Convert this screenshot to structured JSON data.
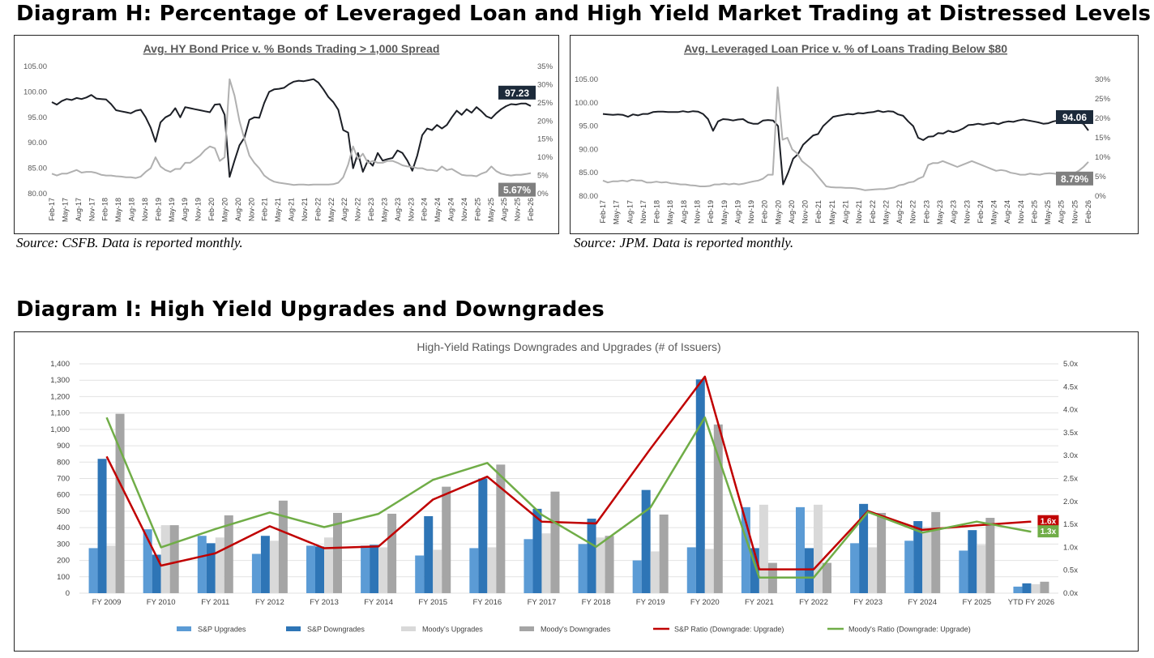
{
  "headings": {
    "diagram_h": "Diagram H: Percentage of Leveraged Loan and High Yield Market Trading at Distressed Levels",
    "diagram_i": "Diagram I: High Yield Upgrades and Downgrades"
  },
  "sources": {
    "hy": "Source: CSFB. Data is reported monthly.",
    "loan": "Source: JPM. Data is reported monthly."
  },
  "colors": {
    "dark": "#1c1f26",
    "light": "#b0b0b0",
    "sp_up": "#5b9bd5",
    "sp_down": "#2e75b6",
    "moody_up": "#d9d9d9",
    "moody_down": "#a5a5a5",
    "sp_ratio": "#c00000",
    "moody_ratio": "#70ad47"
  },
  "chart_data": [
    {
      "type": "line",
      "title": "Avg. HY Bond Price v. % Bonds Trading > 1,000 Spread",
      "x_labels": [
        "Feb-17",
        "May-17",
        "Aug-17",
        "Nov-17",
        "Feb-18",
        "May-18",
        "Aug-18",
        "Nov-18",
        "Feb-19",
        "May-19",
        "Aug-19",
        "Nov-19",
        "Feb-20",
        "May-20",
        "Aug-20",
        "Nov-20",
        "Feb-21",
        "May-21",
        "Aug-21",
        "Nov-21",
        "Feb-22",
        "May-22",
        "Aug-22",
        "Nov-22",
        "Feb-23",
        "May-23",
        "Aug-23",
        "Nov-23",
        "Feb-24",
        "May-24",
        "Aug-24",
        "Nov-24",
        "Feb-25",
        "May-25",
        "Aug-25",
        "Nov-25",
        "Feb-26"
      ],
      "y_left_ticks": [
        "80.00",
        "85.00",
        "90.00",
        "95.00",
        "100.00",
        "105.00"
      ],
      "y_right_ticks": [
        "0%",
        "5%",
        "10%",
        "15%",
        "20%",
        "25%",
        "30%",
        "35%"
      ],
      "ylim_left": [
        80,
        105
      ],
      "ylim_right": [
        0,
        35
      ],
      "series": [
        {
          "name": "Avg. HY Bond Price",
          "axis": "left",
          "color_key": "dark",
          "values": [
            98.0,
            97.5,
            98.2,
            98.6,
            98.4,
            98.8,
            98.6,
            98.9,
            99.4,
            98.7,
            98.6,
            98.5,
            97.6,
            96.4,
            96.2,
            96.0,
            95.8,
            96.3,
            96.5,
            95.0,
            93.0,
            90.2,
            94.0,
            95.0,
            95.5,
            96.8,
            95.0,
            97.0,
            96.8,
            96.6,
            96.4,
            96.2,
            96.0,
            97.5,
            97.6,
            95.5,
            83.3,
            86.5,
            89.5,
            91.0,
            94.5,
            95.0,
            94.9,
            97.8,
            100.0,
            100.5,
            100.6,
            100.8,
            101.5,
            102.0,
            102.2,
            102.1,
            102.3,
            102.5,
            101.8,
            100.5,
            99.0,
            98.0,
            96.5,
            92.5,
            92.0,
            85.0,
            88.0,
            84.3,
            86.5,
            85.5,
            88.0,
            86.5,
            86.8,
            87.0,
            88.5,
            88.0,
            86.5,
            84.5,
            87.5,
            91.5,
            92.8,
            92.5,
            93.5,
            92.8,
            93.5,
            95.0,
            96.3,
            95.5,
            96.6,
            95.9,
            97.0,
            96.2,
            95.2,
            94.8,
            95.8,
            96.6,
            97.2,
            97.6,
            97.5,
            97.7,
            97.7,
            97.23
          ]
        },
        {
          "name": "% Bonds Trading > 1,000 Spread",
          "axis": "right",
          "color_key": "light",
          "values": [
            5.5,
            5.0,
            5.5,
            5.5,
            6.0,
            6.5,
            5.8,
            6.0,
            6.0,
            5.7,
            5.2,
            5.0,
            5.0,
            4.8,
            4.7,
            4.5,
            4.5,
            4.3,
            4.7,
            6.0,
            7.0,
            10.0,
            7.5,
            6.5,
            6.0,
            6.8,
            6.8,
            8.5,
            8.5,
            9.5,
            10.5,
            12.0,
            13.0,
            12.5,
            9.0,
            10.0,
            31.5,
            27.0,
            20.0,
            15.0,
            10.5,
            8.5,
            7.0,
            5.0,
            4.0,
            3.3,
            3.0,
            2.8,
            2.6,
            2.4,
            2.5,
            2.5,
            2.4,
            2.5,
            2.5,
            2.5,
            2.5,
            2.6,
            3.0,
            4.5,
            8.0,
            13.0,
            9.5,
            11.0,
            8.5,
            9.0,
            8.5,
            8.5,
            9.0,
            9.0,
            8.5,
            7.8,
            7.5,
            7.4,
            7.0,
            7.0,
            6.5,
            6.5,
            6.2,
            7.5,
            6.5,
            6.8,
            6.0,
            5.2,
            5.0,
            5.0,
            4.8,
            5.5,
            6.0,
            7.5,
            6.2,
            5.5,
            5.2,
            5.0,
            5.2,
            5.2,
            5.4,
            5.67
          ]
        }
      ],
      "callouts": [
        {
          "text": "97.23",
          "series": "Avg. HY Bond Price",
          "style": "dark"
        },
        {
          "text": "5.67%",
          "series": "% Bonds Trading > 1,000 Spread",
          "style": "gray"
        }
      ]
    },
    {
      "type": "line",
      "title": "Avg. Leveraged Loan Price v. % of Loans Trading Below $80",
      "x_labels": [
        "Feb-17",
        "May-17",
        "Aug-17",
        "Nov-17",
        "Feb-18",
        "May-18",
        "Aug-18",
        "Nov-18",
        "Feb-19",
        "May-19",
        "Aug-19",
        "Nov-19",
        "Feb-20",
        "May-20",
        "Aug-20",
        "Nov-20",
        "Feb-21",
        "May-21",
        "Aug-21",
        "Nov-21",
        "Feb-22",
        "May-22",
        "Aug-22",
        "Nov-22",
        "Feb-23",
        "May-23",
        "Aug-23",
        "Nov-23",
        "Feb-24",
        "May-24",
        "Aug-24",
        "Nov-24",
        "Feb-25",
        "May-25",
        "Aug-25",
        "Nov-25",
        "Feb-26"
      ],
      "y_left_ticks": [
        "80.00",
        "85.00",
        "90.00",
        "95.00",
        "100.00",
        "105.00"
      ],
      "y_right_ticks": [
        "0%",
        "5%",
        "10%",
        "15%",
        "20%",
        "25%",
        "30%"
      ],
      "ylim_left": [
        80,
        105
      ],
      "ylim_right": [
        0,
        30
      ],
      "series": [
        {
          "name": "Avg. Leveraged Loan Price",
          "axis": "left",
          "color_key": "dark",
          "values": [
            97.6,
            97.5,
            97.4,
            97.5,
            97.4,
            97.0,
            97.5,
            97.3,
            97.6,
            97.6,
            98.0,
            98.1,
            98.1,
            98.0,
            98.0,
            98.0,
            98.2,
            98.0,
            98.2,
            98.1,
            97.6,
            96.5,
            94.0,
            96.0,
            96.5,
            96.4,
            96.2,
            96.4,
            96.5,
            95.8,
            95.5,
            95.5,
            96.2,
            96.3,
            96.2,
            95.0,
            82.5,
            85.0,
            88.0,
            89.0,
            91.0,
            92.0,
            93.0,
            93.3,
            95.0,
            96.0,
            97.0,
            97.2,
            97.4,
            97.6,
            97.5,
            97.8,
            97.7,
            97.9,
            98.0,
            98.3,
            98.0,
            98.2,
            98.1,
            97.5,
            97.2,
            96.0,
            95.0,
            92.5,
            92.0,
            92.7,
            92.8,
            93.5,
            93.4,
            94.0,
            93.7,
            94.0,
            94.5,
            95.2,
            95.3,
            95.5,
            95.3,
            95.5,
            95.7,
            95.4,
            95.8,
            96.0,
            95.9,
            96.2,
            96.4,
            96.2,
            96.0,
            95.8,
            95.5,
            95.6,
            96.0,
            96.2,
            96.3,
            96.1,
            96.0,
            95.8,
            95.5,
            94.06
          ]
        },
        {
          "name": "% of Loans Trading Below $80",
          "axis": "right",
          "color_key": "light",
          "values": [
            4.0,
            3.5,
            3.8,
            3.8,
            4.0,
            3.8,
            4.2,
            4.0,
            4.0,
            3.5,
            3.5,
            3.7,
            3.5,
            3.6,
            3.3,
            3.2,
            3.0,
            3.0,
            2.8,
            2.7,
            2.5,
            2.5,
            2.6,
            3.0,
            3.0,
            3.2,
            3.0,
            3.2,
            3.0,
            3.2,
            3.5,
            3.8,
            4.0,
            4.5,
            5.5,
            5.5,
            28.0,
            14.5,
            15.0,
            12.0,
            11.0,
            9.0,
            8.0,
            7.0,
            5.5,
            4.0,
            2.5,
            2.3,
            2.2,
            2.2,
            2.1,
            2.1,
            2.0,
            1.8,
            1.5,
            1.6,
            1.7,
            1.8,
            1.8,
            2.0,
            2.2,
            2.8,
            3.0,
            3.5,
            3.7,
            4.5,
            5.0,
            8.0,
            8.5,
            8.5,
            9.0,
            8.5,
            8.0,
            7.5,
            8.0,
            8.5,
            9.0,
            8.5,
            8.0,
            7.5,
            7.0,
            6.5,
            6.7,
            6.5,
            6.0,
            5.8,
            5.5,
            5.5,
            5.8,
            5.6,
            5.5,
            5.8,
            5.9,
            5.8,
            5.6,
            5.4,
            5.5,
            5.8,
            6.5,
            7.5,
            8.79
          ]
        }
      ],
      "callouts": [
        {
          "text": "94.06",
          "series": "Avg. Leveraged Loan Price",
          "style": "dark"
        },
        {
          "text": "8.79%",
          "series": "% of Loans Trading Below $80",
          "style": "gray"
        }
      ]
    },
    {
      "type": "bar",
      "title": "High-Yield Ratings Downgrades and Upgrades (# of Issuers)",
      "categories": [
        "FY 2009",
        "FY 2010",
        "FY 2011",
        "FY 2012",
        "FY 2013",
        "FY 2014",
        "FY 2015",
        "FY 2016",
        "FY 2017",
        "FY 2018",
        "FY 2019",
        "FY 2020",
        "FY 2021",
        "FY 2022",
        "FY 2023",
        "FY 2024",
        "FY 2025",
        "YTD FY 2026"
      ],
      "y_left_ticks": [
        "0",
        "100",
        "200",
        "300",
        "400",
        "500",
        "600",
        "700",
        "800",
        "900",
        "1,000",
        "1,100",
        "1,200",
        "1,300",
        "1,400"
      ],
      "y_right_ticks": [
        "0.0x",
        "0.5x",
        "1.0x",
        "1.5x",
        "2.0x",
        "2.5x",
        "3.0x",
        "3.5x",
        "4.0x",
        "4.5x",
        "5.0x"
      ],
      "ylim_left": [
        0,
        1400
      ],
      "ylim_right": [
        0,
        5
      ],
      "series": [
        {
          "name": "S&P Upgrades",
          "type": "bar",
          "color_key": "sp_up",
          "values": [
            275,
            390,
            350,
            240,
            290,
            290,
            230,
            275,
            330,
            300,
            200,
            280,
            525,
            525,
            305,
            320,
            260,
            40
          ]
        },
        {
          "name": "S&P Downgrades",
          "type": "bar",
          "color_key": "sp_down",
          "values": [
            820,
            235,
            305,
            350,
            285,
            295,
            470,
            700,
            515,
            455,
            630,
            1305,
            275,
            275,
            545,
            440,
            385,
            60
          ]
        },
        {
          "name": "Moody's Upgrades",
          "type": "bar",
          "color_key": "moody_up",
          "values": [
            290,
            415,
            340,
            320,
            340,
            280,
            265,
            280,
            365,
            340,
            255,
            270,
            540,
            540,
            280,
            405,
            295,
            55
          ]
        },
        {
          "name": "Moody's Downgrades",
          "type": "bar",
          "color_key": "moody_down",
          "values": [
            1095,
            415,
            475,
            565,
            490,
            485,
            650,
            785,
            620,
            350,
            480,
            1030,
            185,
            185,
            490,
            495,
            460,
            70
          ]
        },
        {
          "name": "S&P Ratio (Downgrade: Upgrade)",
          "type": "line",
          "axis": "right",
          "color_key": "sp_ratio",
          "values": [
            2.98,
            0.6,
            0.87,
            1.46,
            0.98,
            1.02,
            2.04,
            2.54,
            1.56,
            1.52,
            3.15,
            4.72,
            0.52,
            0.52,
            1.79,
            1.38,
            1.48,
            1.56
          ]
        },
        {
          "name": "Moody's Ratio (Downgrade: Upgrade)",
          "type": "line",
          "axis": "right",
          "color_key": "moody_ratio",
          "values": [
            3.83,
            1.0,
            1.4,
            1.76,
            1.44,
            1.73,
            2.47,
            2.84,
            1.71,
            1.01,
            1.87,
            3.83,
            0.34,
            0.34,
            1.77,
            1.32,
            1.56,
            1.34
          ]
        }
      ],
      "callouts": [
        {
          "text": "1.6x",
          "series": "S&P Ratio (Downgrade: Upgrade)"
        },
        {
          "text": "1.3x",
          "series": "Moody's Ratio (Downgrade: Upgrade)"
        }
      ],
      "legend": [
        "S&P Upgrades",
        "S&P Downgrades",
        "Moody's Upgrades",
        "Moody's Downgrades",
        "S&P Ratio (Downgrade: Upgrade)",
        "Moody's Ratio (Downgrade: Upgrade)"
      ]
    }
  ]
}
